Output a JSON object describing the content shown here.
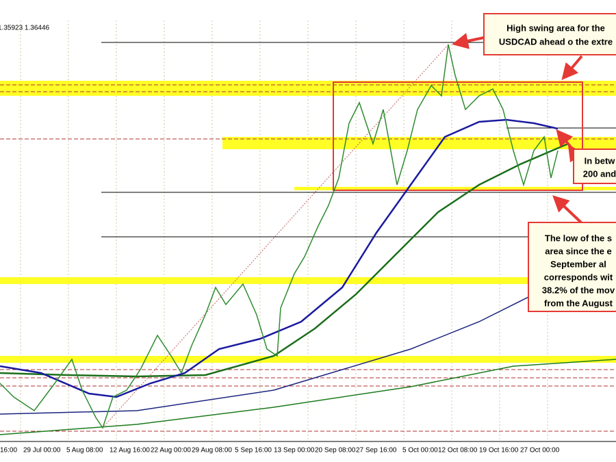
{
  "header": {
    "price_readout": "1.35923 1.36446"
  },
  "x_axis": {
    "labels": [
      "16:00",
      "29 Jul 00:00",
      "5 Aug 08:00",
      "12 Aug 16:00",
      "22 Aug 00:00",
      "29 Aug 08:00",
      "5 Sep 16:00",
      "13 Sep 00:00",
      "20 Sep 08:00",
      "27 Sep 16:00",
      "5 Oct 00:00",
      "12 Oct 08:00",
      "19 Oct 16:00",
      "27 Oct 00:00"
    ]
  },
  "annotations": [
    {
      "lines": [
        "High swing area  for the",
        "USDCAD ahead o the extre"
      ]
    },
    {
      "lines": [
        "In betw",
        "200 and"
      ]
    },
    {
      "lines": [
        "The low of the s",
        "area since the e",
        "September al",
        "corresponds wit",
        "38.2% of the mov",
        "from the August"
      ]
    }
  ]
}
